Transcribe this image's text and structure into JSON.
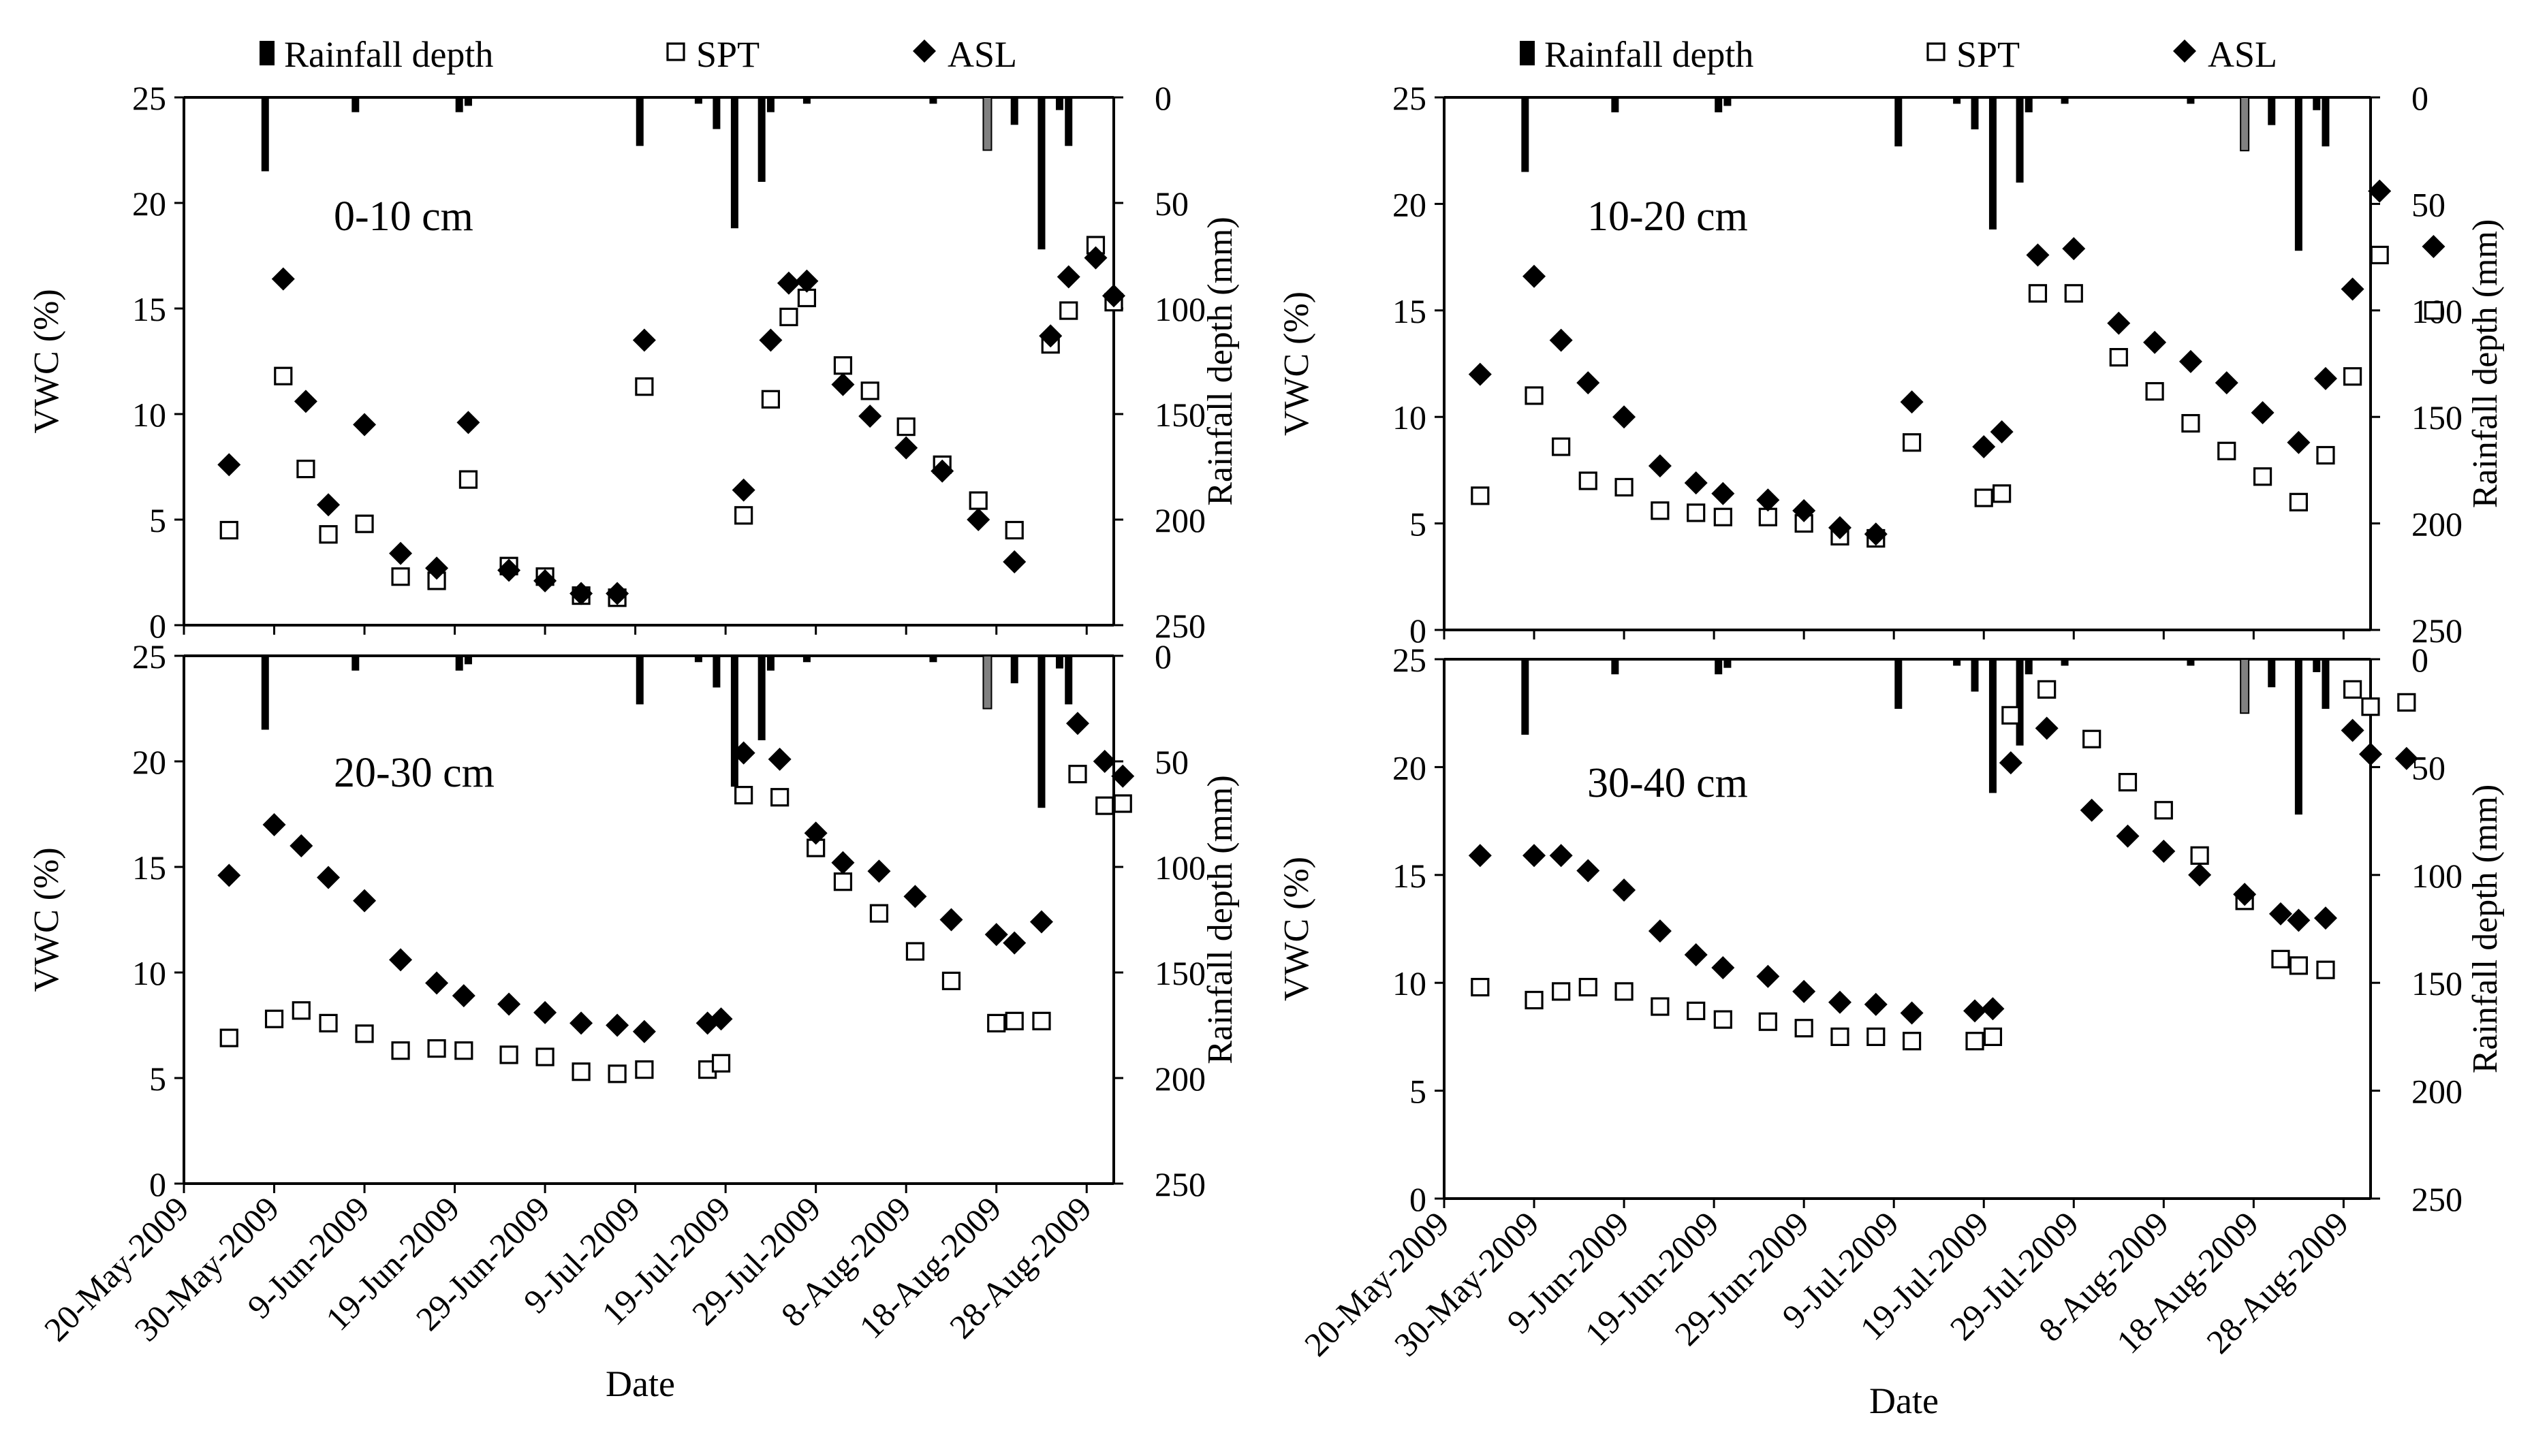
{
  "chart_data": [
    {
      "type": "scatter",
      "depth_label": "0-10 cm",
      "xlabel": "Date",
      "ylabel": "VWC (%)",
      "ylabel_right": "Rainfall depth (mm)",
      "ylim": [
        0,
        25
      ],
      "yticks": [
        "0",
        "5",
        "10",
        "15",
        "20",
        "25"
      ],
      "ylim_right": [
        0,
        250
      ],
      "yticks_right": [
        "0",
        "50",
        "100",
        "150",
        "200",
        "250"
      ],
      "xlim_days": [
        0,
        103
      ],
      "xticks": [
        "20-May-2009",
        "30-May-2009",
        "9-Jun-2009",
        "19-Jun-2009",
        "29-Jun-2009",
        "9-Jul-2009",
        "19-Jul-2009",
        "29-Jul-2009",
        "8-Aug-2009",
        "18-Aug-2009",
        "28-Aug-2009"
      ],
      "legend": [
        "Rainfall depth",
        "SPT",
        "ASL"
      ],
      "series": [
        {
          "name": "SPT",
          "marker": "square",
          "days": [
            5,
            11,
            13.5,
            16,
            20,
            24,
            28,
            31.5,
            36,
            40,
            44,
            48,
            51,
            62,
            65,
            67,
            69,
            73,
            76,
            80,
            84,
            88,
            92,
            96,
            98,
            101,
            103
          ],
          "values": [
            4.5,
            11.8,
            7.4,
            4.3,
            4.8,
            2.3,
            2.1,
            6.9,
            2.8,
            2.3,
            1.4,
            1.3,
            11.3,
            5.2,
            10.7,
            14.6,
            15.5,
            12.3,
            11.1,
            9.4,
            7.6,
            5.9,
            4.5,
            13.3,
            14.9,
            18.0,
            15.3
          ]
        },
        {
          "name": "ASL",
          "marker": "diamond",
          "days": [
            5,
            11,
            13.5,
            16,
            20,
            24,
            28,
            31.5,
            36,
            40,
            44,
            48,
            51,
            62,
            65,
            67,
            69,
            73,
            76,
            80,
            84,
            88,
            92,
            96,
            98,
            101,
            103
          ],
          "values": [
            7.6,
            16.4,
            10.6,
            5.7,
            9.5,
            3.4,
            2.7,
            9.6,
            2.6,
            2.1,
            1.5,
            1.5,
            13.5,
            6.4,
            13.5,
            16.2,
            16.3,
            11.4,
            9.9,
            8.4,
            7.3,
            5.0,
            3.0,
            13.7,
            16.5,
            17.4,
            15.6
          ]
        }
      ],
      "rainfall": [
        {
          "day": 9,
          "mm": 35
        },
        {
          "day": 19,
          "mm": 7
        },
        {
          "day": 30.5,
          "mm": 7
        },
        {
          "day": 31.5,
          "mm": 4
        },
        {
          "day": 50.5,
          "mm": 23
        },
        {
          "day": 57,
          "mm": 3
        },
        {
          "day": 59,
          "mm": 15
        },
        {
          "day": 61,
          "mm": 62
        },
        {
          "day": 64,
          "mm": 40
        },
        {
          "day": 65,
          "mm": 7
        },
        {
          "day": 69,
          "mm": 3
        },
        {
          "day": 83,
          "mm": 3
        },
        {
          "day": 89,
          "mm": 25,
          "gray": true
        },
        {
          "day": 92,
          "mm": 13
        },
        {
          "day": 95,
          "mm": 72
        },
        {
          "day": 97,
          "mm": 6
        },
        {
          "day": 98,
          "mm": 23
        }
      ]
    },
    {
      "type": "scatter",
      "depth_label": "10-20 cm",
      "xlabel": "Date",
      "ylabel": "VWC (%)",
      "ylabel_right": "Rainfall depth (mm)",
      "ylim": [
        0,
        25
      ],
      "yticks": [
        "0",
        "5",
        "10",
        "15",
        "20",
        "25"
      ],
      "ylim_right": [
        0,
        250
      ],
      "yticks_right": [
        "0",
        "50",
        "100",
        "150",
        "200",
        "250"
      ],
      "xlim_days": [
        0,
        103
      ],
      "xticks": [
        "20-May-2009",
        "30-May-2009",
        "9-Jun-2009",
        "19-Jun-2009",
        "29-Jun-2009",
        "9-Jul-2009",
        "19-Jul-2009",
        "29-Jul-2009",
        "8-Aug-2009",
        "18-Aug-2009",
        "28-Aug-2009"
      ],
      "legend": [
        "Rainfall depth",
        "SPT",
        "ASL"
      ],
      "series": [
        {
          "name": "SPT",
          "marker": "square",
          "days": [
            4,
            10,
            13,
            16,
            20,
            24,
            28,
            31,
            36,
            40,
            44,
            48,
            52,
            60,
            62,
            66,
            70,
            75,
            79,
            83,
            87,
            91,
            95,
            98,
            101,
            104,
            110
          ],
          "values": [
            6.3,
            11.0,
            8.6,
            7.0,
            6.7,
            5.6,
            5.5,
            5.3,
            5.3,
            5.0,
            4.4,
            4.3,
            8.8,
            6.2,
            6.4,
            15.8,
            15.8,
            12.8,
            11.2,
            9.7,
            8.4,
            7.2,
            6.0,
            8.2,
            11.9,
            17.6,
            15.0
          ]
        },
        {
          "name": "ASL",
          "marker": "diamond",
          "days": [
            4,
            10,
            13,
            16,
            20,
            24,
            28,
            31,
            36,
            40,
            44,
            48,
            52,
            60,
            62,
            66,
            70,
            75,
            79,
            83,
            87,
            91,
            95,
            98,
            101,
            104,
            110
          ],
          "values": [
            12.0,
            16.6,
            13.6,
            11.6,
            10.0,
            7.7,
            6.9,
            6.4,
            6.1,
            5.6,
            4.8,
            4.5,
            10.7,
            8.6,
            9.3,
            17.6,
            17.9,
            14.4,
            13.5,
            12.6,
            11.6,
            10.2,
            8.8,
            11.8,
            16.0,
            20.6,
            18.0
          ]
        }
      ],
      "rainfall": [
        {
          "day": 9,
          "mm": 35
        },
        {
          "day": 19,
          "mm": 7
        },
        {
          "day": 30.5,
          "mm": 7
        },
        {
          "day": 31.5,
          "mm": 4
        },
        {
          "day": 50.5,
          "mm": 23
        },
        {
          "day": 57,
          "mm": 3
        },
        {
          "day": 59,
          "mm": 15
        },
        {
          "day": 61,
          "mm": 62
        },
        {
          "day": 64,
          "mm": 40
        },
        {
          "day": 65,
          "mm": 7
        },
        {
          "day": 69,
          "mm": 3
        },
        {
          "day": 83,
          "mm": 3
        },
        {
          "day": 89,
          "mm": 25,
          "gray": true
        },
        {
          "day": 92,
          "mm": 13
        },
        {
          "day": 95,
          "mm": 72
        },
        {
          "day": 97,
          "mm": 6
        },
        {
          "day": 98,
          "mm": 23
        }
      ]
    },
    {
      "type": "scatter",
      "depth_label": "20-30 cm",
      "xlabel": "Date",
      "ylabel": "VWC (%)",
      "ylabel_right": "Rainfall depth (mm)",
      "ylim": [
        0,
        25
      ],
      "yticks": [
        "0",
        "5",
        "10",
        "15",
        "20",
        "25"
      ],
      "ylim_right": [
        0,
        250
      ],
      "yticks_right": [
        "0",
        "50",
        "100",
        "150",
        "200",
        "250"
      ],
      "xlim_days": [
        0,
        103
      ],
      "xticks": [
        "20-May-2009",
        "30-May-2009",
        "9-Jun-2009",
        "19-Jun-2009",
        "29-Jun-2009",
        "9-Jul-2009",
        "19-Jul-2009",
        "29-Jul-2009",
        "8-Aug-2009",
        "18-Aug-2009",
        "28-Aug-2009"
      ],
      "legend": [
        "Rainfall depth",
        "SPT",
        "ASL"
      ],
      "series": [
        {
          "name": "SPT",
          "marker": "square",
          "days": [
            5,
            10,
            13,
            16,
            20,
            24,
            28,
            31,
            36,
            40,
            44,
            48,
            51,
            58,
            59.5,
            62,
            66,
            70,
            73,
            77,
            81,
            85,
            90,
            92,
            95,
            99,
            102,
            104
          ],
          "values": [
            6.9,
            7.8,
            8.2,
            7.6,
            7.1,
            6.3,
            6.4,
            6.3,
            6.1,
            6.0,
            5.3,
            5.2,
            5.4,
            5.4,
            5.7,
            18.4,
            18.3,
            15.9,
            14.3,
            12.8,
            11.0,
            9.6,
            7.6,
            7.7,
            7.7,
            19.4,
            17.9,
            18.0
          ]
        },
        {
          "name": "ASL",
          "marker": "diamond",
          "days": [
            5,
            10,
            13,
            16,
            20,
            24,
            28,
            31,
            36,
            40,
            44,
            48,
            51,
            58,
            59.5,
            62,
            66,
            70,
            73,
            77,
            81,
            85,
            90,
            92,
            95,
            99,
            102,
            104
          ],
          "values": [
            14.6,
            17.0,
            16.0,
            14.5,
            13.4,
            10.6,
            9.5,
            8.9,
            8.5,
            8.1,
            7.6,
            7.5,
            7.2,
            7.6,
            7.8,
            20.4,
            20.1,
            16.6,
            15.2,
            14.8,
            13.6,
            12.5,
            11.8,
            11.4,
            12.4,
            21.8,
            20.0,
            19.3
          ]
        }
      ],
      "rainfall": [
        {
          "day": 9,
          "mm": 35
        },
        {
          "day": 19,
          "mm": 7
        },
        {
          "day": 30.5,
          "mm": 7
        },
        {
          "day": 31.5,
          "mm": 4
        },
        {
          "day": 50.5,
          "mm": 23
        },
        {
          "day": 57,
          "mm": 3
        },
        {
          "day": 59,
          "mm": 15
        },
        {
          "day": 61,
          "mm": 62
        },
        {
          "day": 64,
          "mm": 40
        },
        {
          "day": 65,
          "mm": 7
        },
        {
          "day": 69,
          "mm": 3
        },
        {
          "day": 83,
          "mm": 3
        },
        {
          "day": 89,
          "mm": 25,
          "gray": true
        },
        {
          "day": 92,
          "mm": 13
        },
        {
          "day": 95,
          "mm": 72
        },
        {
          "day": 97,
          "mm": 6
        },
        {
          "day": 98,
          "mm": 23
        }
      ]
    },
    {
      "type": "scatter",
      "depth_label": "30-40 cm",
      "xlabel": "Date",
      "ylabel": "VWC (%)",
      "ylabel_right": "Rainfall depth (mm)",
      "ylim": [
        0,
        25
      ],
      "yticks": [
        "0",
        "5",
        "10",
        "15",
        "20",
        "25"
      ],
      "ylim_right": [
        0,
        250
      ],
      "yticks_right": [
        "0",
        "50",
        "100",
        "150",
        "200",
        "250"
      ],
      "xlim_days": [
        0,
        103
      ],
      "xticks": [
        "20-May-2009",
        "30-May-2009",
        "9-Jun-2009",
        "19-Jun-2009",
        "29-Jun-2009",
        "9-Jul-2009",
        "19-Jul-2009",
        "29-Jul-2009",
        "8-Aug-2009",
        "18-Aug-2009",
        "28-Aug-2009"
      ],
      "legend": [
        "Rainfall depth",
        "SPT",
        "ASL"
      ],
      "series": [
        {
          "name": "SPT",
          "marker": "square",
          "days": [
            4,
            10,
            13,
            16,
            20,
            24,
            28,
            31,
            36,
            40,
            44,
            48,
            52,
            59,
            61,
            63,
            67,
            72,
            76,
            80,
            84,
            89,
            93,
            95,
            98,
            101,
            103,
            107
          ],
          "values": [
            9.8,
            9.2,
            9.6,
            9.8,
            9.6,
            8.9,
            8.7,
            8.3,
            8.2,
            7.9,
            7.5,
            7.5,
            7.3,
            7.3,
            7.5,
            22.4,
            23.6,
            21.3,
            19.3,
            18.0,
            15.9,
            13.8,
            11.1,
            10.8,
            10.6,
            23.6,
            22.8,
            23.0
          ]
        },
        {
          "name": "ASL",
          "marker": "diamond",
          "days": [
            4,
            10,
            13,
            16,
            20,
            24,
            28,
            31,
            36,
            40,
            44,
            48,
            52,
            59,
            61,
            63,
            67,
            72,
            76,
            80,
            84,
            89,
            93,
            95,
            98,
            101,
            103,
            107
          ],
          "values": [
            15.9,
            15.9,
            15.9,
            15.2,
            14.3,
            12.4,
            11.3,
            10.7,
            10.3,
            9.6,
            9.1,
            9.0,
            8.6,
            8.7,
            8.8,
            20.2,
            21.8,
            18.0,
            16.8,
            16.1,
            15.0,
            14.1,
            13.2,
            12.9,
            13.0,
            21.7,
            20.6,
            20.4
          ]
        }
      ],
      "rainfall": [
        {
          "day": 9,
          "mm": 35
        },
        {
          "day": 19,
          "mm": 7
        },
        {
          "day": 30.5,
          "mm": 7
        },
        {
          "day": 31.5,
          "mm": 4
        },
        {
          "day": 50.5,
          "mm": 23
        },
        {
          "day": 57,
          "mm": 3
        },
        {
          "day": 59,
          "mm": 15
        },
        {
          "day": 61,
          "mm": 62
        },
        {
          "day": 64,
          "mm": 40
        },
        {
          "day": 65,
          "mm": 7
        },
        {
          "day": 69,
          "mm": 3
        },
        {
          "day": 83,
          "mm": 3
        },
        {
          "day": 89,
          "mm": 25,
          "gray": true
        },
        {
          "day": 92,
          "mm": 13
        },
        {
          "day": 95,
          "mm": 72
        },
        {
          "day": 97,
          "mm": 6
        },
        {
          "day": 98,
          "mm": 23
        }
      ]
    }
  ]
}
